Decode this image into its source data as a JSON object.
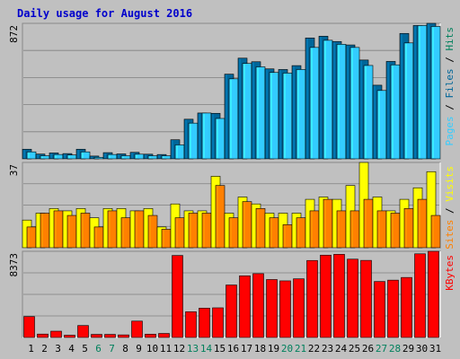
{
  "chart_data": [
    {
      "type": "bar",
      "title": "Daily usage for August 2016",
      "categories": [
        "1",
        "2",
        "3",
        "4",
        "5",
        "6",
        "7",
        "8",
        "9",
        "10",
        "11",
        "12",
        "13",
        "14",
        "15",
        "16",
        "17",
        "18",
        "19",
        "20",
        "21",
        "22",
        "23",
        "24",
        "25",
        "26",
        "27",
        "28",
        "29",
        "30",
        "31"
      ],
      "weekend_days": [
        "6",
        "7",
        "13",
        "14",
        "20",
        "21",
        "27",
        "28"
      ],
      "panels": [
        {
          "id": "hits",
          "ylabel_parts": [
            "Pages",
            "Files",
            "Hits"
          ],
          "y_max_label": "872",
          "ylim": [
            0,
            872
          ],
          "series": [
            {
              "name": "Hits",
              "color": "#006699",
              "values": [
                62,
                31,
                38,
                34,
                62,
                18,
                40,
                32,
                42,
                30,
                28,
                123,
                255,
                295,
                293,
                545,
                648,
                625,
                579,
                575,
                600,
                778,
                789,
                755,
                733,
                636,
                474,
                627,
                807,
                858,
                872
              ]
            },
            {
              "name": "Files",
              "color": "#33ccff",
              "values": [
                45,
                20,
                28,
                25,
                45,
                10,
                28,
                20,
                30,
                20,
                20,
                90,
                230,
                295,
                260,
                515,
                614,
                592,
                556,
                552,
                575,
                717,
                763,
                737,
                717,
                601,
                440,
                605,
                746,
                858,
                852
              ]
            }
          ]
        },
        {
          "id": "visits",
          "ylabel_parts": [
            "Sites",
            "Visits"
          ],
          "y_max_label": "37",
          "ylim": [
            0,
            37
          ],
          "series": [
            {
              "name": "Visits",
              "color": "#ffff00",
              "values": [
                12,
                15,
                17,
                16,
                17,
                13,
                17,
                17,
                16,
                17,
                9,
                19,
                16,
                16,
                31,
                15,
                22,
                19,
                15,
                15,
                15,
                21,
                22,
                21,
                27,
                37,
                22,
                16,
                21,
                26,
                33
              ]
            },
            {
              "name": "Sites",
              "color": "#ff8000",
              "values": [
                9,
                15,
                16,
                14,
                15,
                9,
                16,
                13,
                16,
                14,
                8,
                13,
                15,
                15,
                27,
                13,
                20,
                17,
                13,
                10,
                13,
                16,
                21,
                16,
                16,
                21,
                16,
                15,
                17,
                21,
                14
              ]
            }
          ]
        },
        {
          "id": "kbytes",
          "ylabel_parts": [
            "KBytes"
          ],
          "y_max_label": "8373",
          "ylim": [
            0,
            8373
          ],
          "series": [
            {
              "name": "KBytes",
              "color": "#ff0000",
              "values": [
                2030,
                330,
                610,
                220,
                1160,
                300,
                300,
                250,
                1590,
                320,
                390,
                7970,
                2500,
                2850,
                2880,
                5100,
                5990,
                6200,
                5630,
                5500,
                5700,
                7480,
                8000,
                8080,
                7610,
                7490,
                5440,
                5570,
                5830,
                8130,
                8373
              ]
            }
          ]
        }
      ]
    }
  ]
}
